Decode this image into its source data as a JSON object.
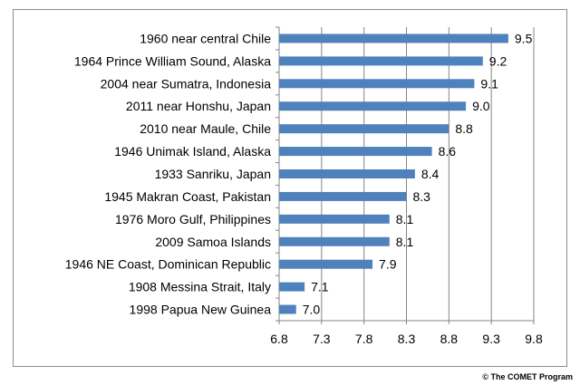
{
  "credit": "© The COMET Program",
  "colors": {
    "bar": "#4f81bd",
    "grid": "#868686",
    "axis": "#868686",
    "text": "#000000"
  },
  "chart_data": {
    "type": "bar",
    "orientation": "horizontal",
    "title": "",
    "xlabel": "",
    "ylabel": "",
    "categories": [
      "1960 near central Chile",
      "1964 Prince William Sound, Alaska",
      "2004 near Sumatra, Indonesia",
      "2011 near Honshu, Japan",
      "2010 near Maule, Chile",
      "1946 Unimak Island, Alaska",
      "1933 Sanriku, Japan",
      "1945 Makran Coast,  Pakistan",
      "1976 Moro Gulf, Philippines",
      "2009 Samoa Islands",
      "1946 NE Coast, Dominican Republic",
      "1908 Messina Strait, Italy",
      "1998 Papua New Guinea"
    ],
    "values": [
      9.5,
      9.2,
      9.1,
      9.0,
      8.8,
      8.6,
      8.4,
      8.3,
      8.1,
      8.1,
      7.9,
      7.1,
      7.0
    ],
    "data_labels": [
      "9.5",
      "9.2",
      "9.1",
      "9.0",
      "8.8",
      "8.6",
      "8.4",
      "8.3",
      "8.1",
      "8.1",
      "7.9",
      "7.1",
      "7.0"
    ],
    "xlim": [
      6.8,
      9.8
    ],
    "xticks": [
      6.8,
      7.3,
      7.8,
      8.3,
      8.8,
      9.3,
      9.8
    ],
    "xtick_labels": [
      "6.8",
      "7.3",
      "7.8",
      "8.3",
      "8.8",
      "9.3",
      "9.8"
    ],
    "grid": "vertical",
    "legend": "none"
  }
}
